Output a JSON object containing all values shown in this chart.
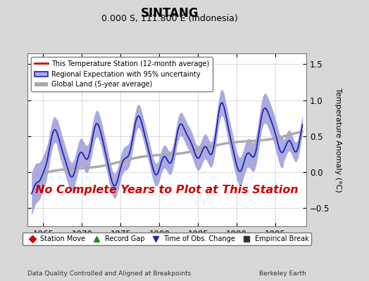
{
  "title": "SINTANG",
  "subtitle": "0.000 S, 111.800 E (Indonesia)",
  "ylabel": "Temperature Anomaly (°C)",
  "xlim": [
    1963.0,
    1999.0
  ],
  "ylim": [
    -0.75,
    1.65
  ],
  "yticks": [
    -0.5,
    0,
    0.5,
    1.0,
    1.5
  ],
  "xticks": [
    1965,
    1970,
    1975,
    1980,
    1985,
    1990,
    1995
  ],
  "no_data_text": "No Complete Years to Plot at This Station",
  "footer_left": "Data Quality Controlled and Aligned at Breakpoints",
  "footer_right": "Berkeley Earth",
  "bg_color": "#d8d8d8",
  "plot_bg_color": "#ffffff",
  "regional_color": "#2222bb",
  "regional_fill_color": "#aaaadd",
  "global_color": "#aaaaaa",
  "station_color": "#cc0000",
  "no_data_color": "#cc0000",
  "grid_color": "#cccccc"
}
